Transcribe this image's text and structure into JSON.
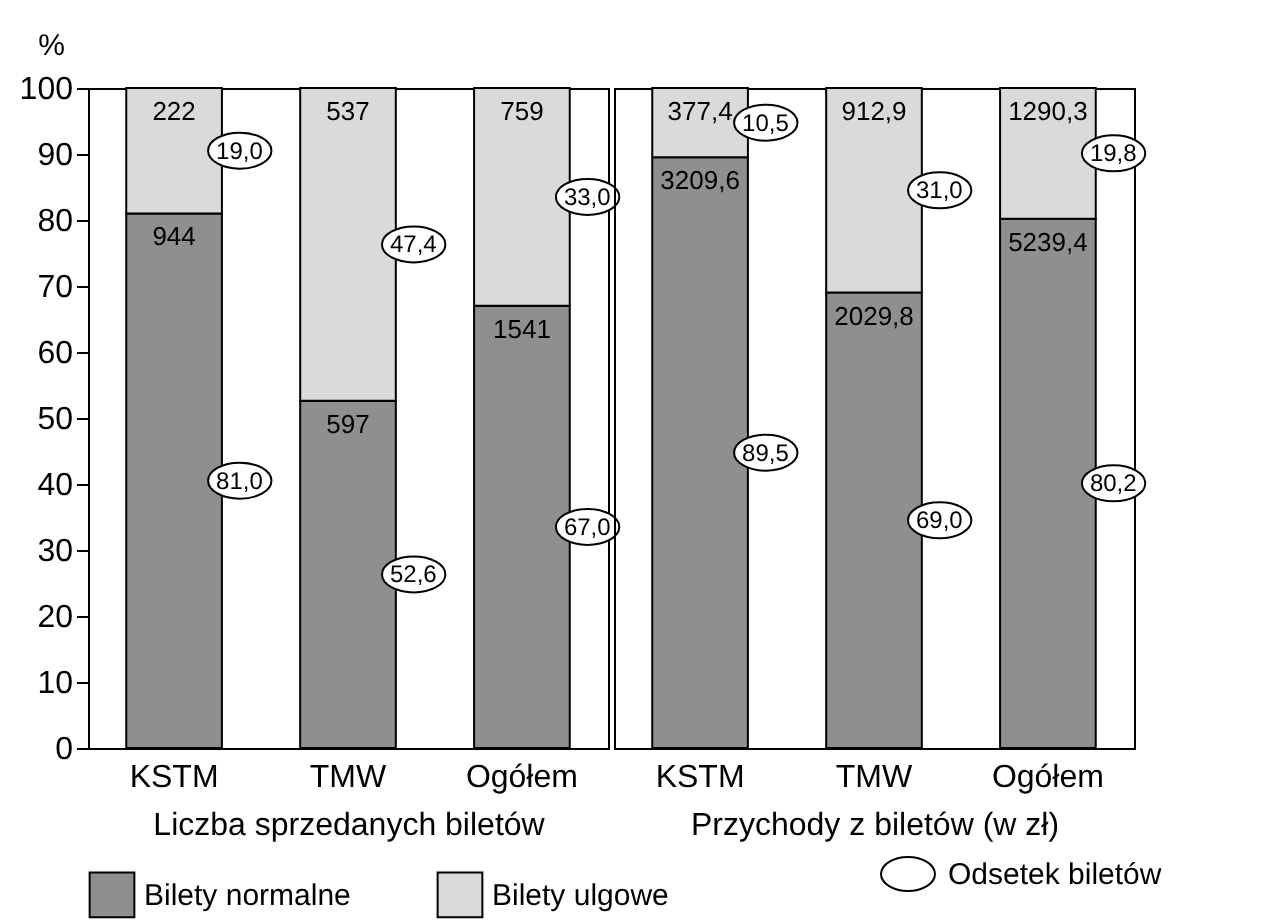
{
  "chart_data": [
    {
      "type": "bar",
      "stacked": true,
      "categories": [
        "KSTM",
        "TMW",
        "Ogółem"
      ],
      "xlabel": "Liczba sprzedanych biletów",
      "ylabel": "%",
      "ylim": [
        0,
        100
      ],
      "yticks": [
        0,
        10,
        20,
        30,
        40,
        50,
        60,
        70,
        80,
        90,
        100
      ],
      "grid": false,
      "legend": "bottom",
      "series": [
        {
          "name": "Bilety normalne",
          "color": "#8f8f8f",
          "values": [
            81.0,
            52.6,
            67.0
          ],
          "value_labels": [
            "81,0",
            "52,6",
            "67,0"
          ]
        },
        {
          "name": "Bilety ulgowe",
          "color": "#dadada",
          "values": [
            19.0,
            47.4,
            33.0
          ],
          "value_labels": [
            "19,0",
            "47,4",
            "33,0"
          ]
        }
      ],
      "annotations": [
        {
          "text": "944",
          "x": "KSTM",
          "y": 81.0
        },
        {
          "text": "597",
          "x": "TMW",
          "y": 52.6
        },
        {
          "text": "1541",
          "x": "Ogółem",
          "y": 67.0
        },
        {
          "text": "222",
          "x": "KSTM",
          "y": 100
        },
        {
          "text": "537",
          "x": "TMW",
          "y": 100
        },
        {
          "text": "759",
          "x": "Ogółem",
          "y": 100
        }
      ]
    },
    {
      "type": "bar",
      "stacked": true,
      "categories": [
        "KSTM",
        "TMW",
        "Ogółem"
      ],
      "xlabel": "Przychody z biletów (w zł)",
      "ylim": [
        0,
        100
      ],
      "grid": false,
      "tick_labels": "x",
      "series": [
        {
          "name": "Bilety normalne",
          "color": "#8f8f8f",
          "values": [
            89.5,
            69.0,
            80.2
          ],
          "value_labels": [
            "89,5",
            "69,0",
            "80,2"
          ]
        },
        {
          "name": "Bilety ulgowe",
          "color": "#dadada",
          "values": [
            10.5,
            31.0,
            19.8
          ],
          "value_labels": [
            "10,5",
            "31,0",
            "19,8"
          ]
        }
      ],
      "annotations": [
        {
          "text": "3209,6",
          "x": "KSTM",
          "y": 89.5
        },
        {
          "text": "2029,8",
          "x": "TMW",
          "y": 69.0
        },
        {
          "text": "5239,4",
          "x": "Ogółem",
          "y": 80.2
        },
        {
          "text": "377,4",
          "x": "KSTM",
          "y": 100
        },
        {
          "text": "912,9",
          "x": "TMW",
          "y": 100
        },
        {
          "text": "1290,3",
          "x": "Ogółem",
          "y": 100
        },
        "Odsetek biletów"
      ]
    }
  ]
}
